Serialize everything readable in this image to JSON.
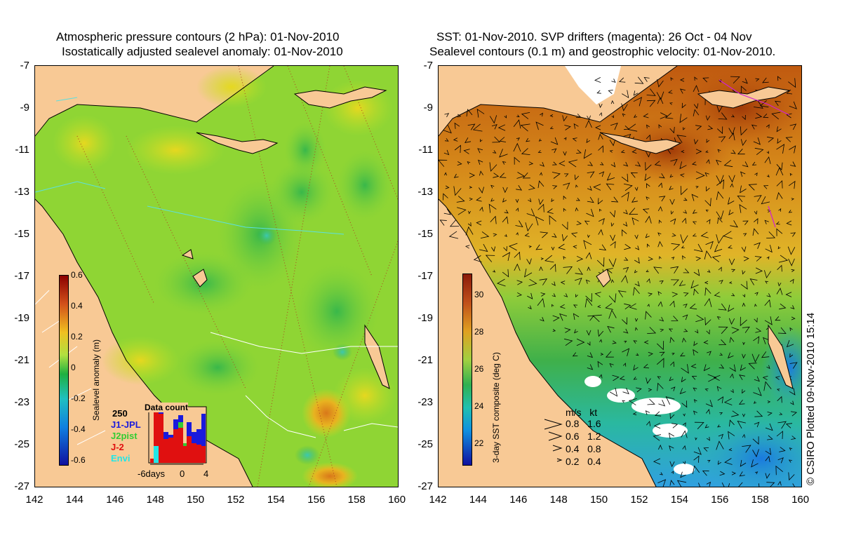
{
  "left": {
    "title1": "Atmospheric pressure contours (2 hPa): 01-Nov-2010",
    "title2": "Isostatically adjusted sealevel anomaly: 01-Nov-2010",
    "colorbar_title": "Sealevel anomaly (m)",
    "colorbar_ticks": [
      "0.6",
      "0.4",
      "0.2",
      "0",
      "-0.2",
      "-0.4",
      "-0.6"
    ],
    "inset": {
      "title": "Data count",
      "max_label": "250",
      "series": [
        "J1-JPL",
        "J2pist",
        "J-2",
        "Envi"
      ],
      "series_colors": [
        "#1a1adc",
        "#33cc33",
        "#e01010",
        "#22e6e6"
      ],
      "xlabels": [
        "-6days",
        "0",
        "4"
      ]
    }
  },
  "right": {
    "title1": "SST: 01-Nov-2010. SVP drifters (magenta): 26 Oct - 04 Nov",
    "title2": "Sealevel contours (0.1 m) and geostrophic velocity: 01-Nov-2010.",
    "colorbar_title": "3-day SST composite (deg C)",
    "colorbar_ticks": [
      "30",
      "28",
      "26",
      "24",
      "22"
    ],
    "velocity_legend": {
      "header": "m/s   kt",
      "rows": [
        "0.8   1.6",
        "0.6   1.2",
        "0.4   0.8",
        "0.2   0.4"
      ]
    }
  },
  "axes": {
    "y_ticks": [
      "-7",
      "-9",
      "-11",
      "-13",
      "-15",
      "-17",
      "-19",
      "-21",
      "-23",
      "-25",
      "-27"
    ],
    "x_ticks": [
      "142",
      "144",
      "146",
      "148",
      "150",
      "152",
      "154",
      "156",
      "158",
      "160"
    ]
  },
  "credit": "© CSIRO Plotted 09-Nov-2010 15:14"
}
